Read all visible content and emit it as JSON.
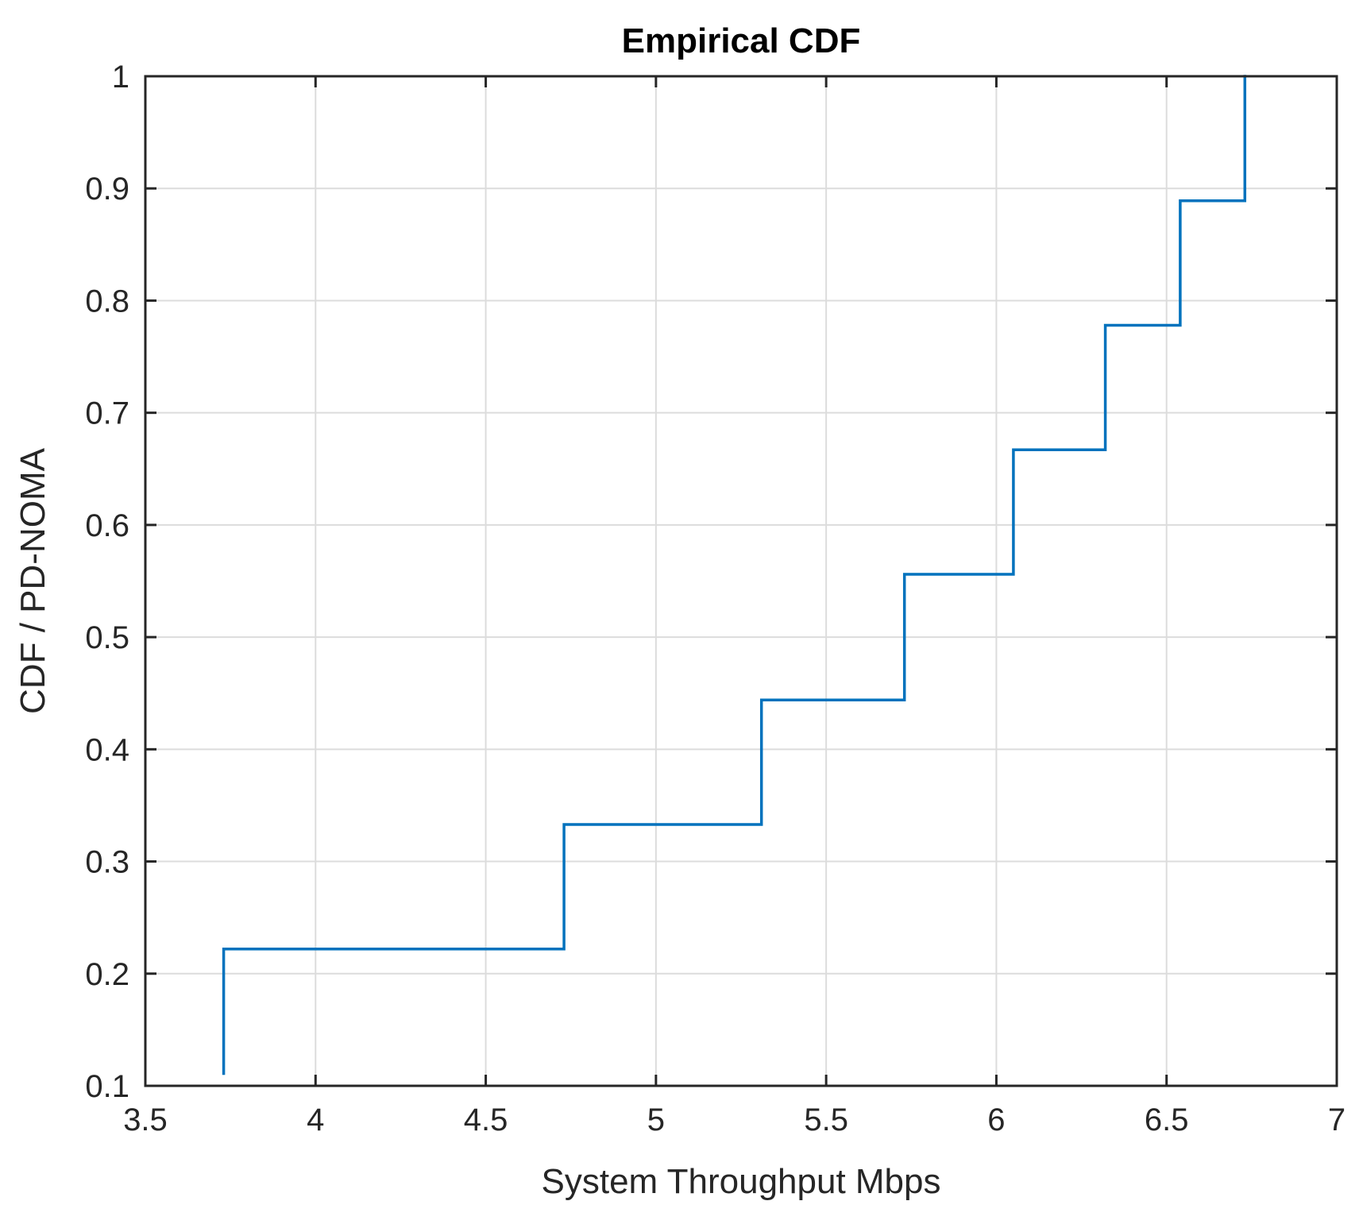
{
  "chart_data": {
    "type": "line",
    "style": "stairs",
    "title": "Empirical CDF",
    "xlabel": "System Throughput Mbps",
    "ylabel": "CDF / PD-NOMA",
    "xlim": [
      3.5,
      7
    ],
    "ylim": [
      0.1,
      1
    ],
    "xticks": [
      3.5,
      4,
      4.5,
      5,
      5.5,
      6,
      6.5,
      7
    ],
    "xtick_labels": [
      "3.5",
      "4",
      "4.5",
      "5",
      "5.5",
      "6",
      "6.5",
      "7"
    ],
    "yticks": [
      0.1,
      0.2,
      0.3,
      0.4,
      0.5,
      0.6,
      0.7,
      0.8,
      0.9,
      1
    ],
    "ytick_labels": [
      "0.1",
      "0.2",
      "0.3",
      "0.4",
      "0.5",
      "0.6",
      "0.7",
      "0.8",
      "0.9",
      "1"
    ],
    "grid": true,
    "series": [
      {
        "name": "Empirical CDF",
        "color": "#0072bd",
        "x": [
          3.73,
          3.73,
          4.73,
          4.73,
          5.31,
          5.31,
          5.73,
          5.73,
          6.05,
          6.05,
          6.32,
          6.32,
          6.54,
          6.54,
          6.73,
          6.73
        ],
        "y": [
          0.111,
          0.222,
          0.222,
          0.333,
          0.333,
          0.444,
          0.444,
          0.556,
          0.556,
          0.667,
          0.667,
          0.778,
          0.778,
          0.889,
          0.889,
          1.0
        ]
      }
    ]
  }
}
